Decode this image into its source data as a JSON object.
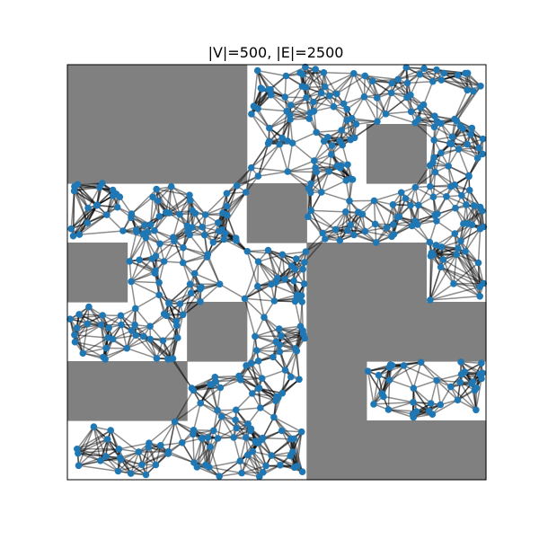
{
  "title": "|V|=500, |E|=2500",
  "colors": {
    "background": "#ffffff",
    "obstacle": "#808080",
    "node": "#1f77b4",
    "edge": "#000000",
    "frame": "#000000"
  },
  "vertex_count": 500,
  "edge_count": 2500,
  "grid": {
    "rows": 7,
    "cols": 7,
    "obstacle_cells": [
      [
        0,
        0
      ],
      [
        1,
        0
      ],
      [
        2,
        0
      ],
      [
        0,
        1
      ],
      [
        1,
        1
      ],
      [
        2,
        1
      ],
      [
        3,
        2
      ],
      [
        0,
        3
      ],
      [
        4,
        3
      ],
      [
        6,
        4
      ],
      [
        2,
        4
      ],
      [
        4,
        4
      ],
      [
        5,
        4
      ],
      [
        4,
        3
      ],
      [
        5,
        3
      ],
      [
        0,
        5
      ],
      [
        1,
        5
      ],
      [
        4,
        5
      ],
      [
        4,
        6
      ],
      [
        5,
        6
      ],
      [
        6,
        6
      ],
      [
        5,
        1
      ]
    ]
  }
}
